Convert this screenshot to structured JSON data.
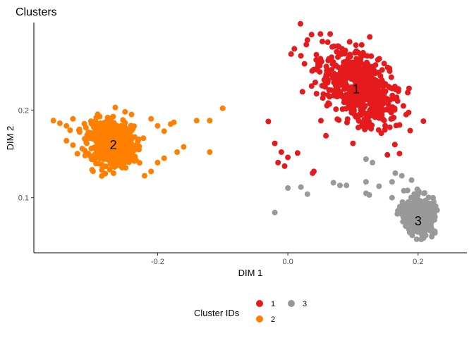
{
  "chart_data": {
    "type": "scatter",
    "title": "Clusters",
    "xlabel": "DIM 1",
    "ylabel": "DIM 2",
    "xlim": [
      -0.39,
      0.275
    ],
    "ylim": [
      0.037,
      0.3
    ],
    "xticks": [
      -0.2,
      0.0,
      0.2
    ],
    "xtick_labels": [
      "-0.2",
      "0.0",
      "0.2"
    ],
    "yticks": [
      0.1,
      0.2
    ],
    "ytick_labels": [
      "0.1",
      "0.2"
    ],
    "grid": false,
    "legend": {
      "title": "Cluster IDs",
      "placement": "bottom",
      "entries": [
        "1",
        "2",
        "3"
      ]
    },
    "series": [
      {
        "name": "1",
        "color": "#e41a1c",
        "label_position": [
          0.105,
          0.224
        ],
        "core_cloud": {
          "center": [
            0.11,
            0.225
          ],
          "major_axis_spread": 0.06,
          "minor_axis_spread": 0.02,
          "tilt_data_slope": -0.55,
          "count": 600
        },
        "points": [
          [
            0.01,
            0.27
          ],
          [
            0.03,
            0.28
          ],
          [
            0.05,
            0.287
          ],
          [
            0.065,
            0.287
          ],
          [
            0.005,
            0.264
          ],
          [
            0.02,
            0.262
          ],
          [
            -0.03,
            0.187
          ],
          [
            -0.02,
            0.162
          ],
          [
            -0.01,
            0.152
          ],
          [
            -0.015,
            0.14
          ],
          [
            -0.005,
            0.136
          ],
          [
            0.0,
            0.146
          ],
          [
            0.015,
            0.151
          ],
          [
            0.038,
            0.128
          ],
          [
            0.04,
            0.13
          ],
          [
            0.1,
            0.162
          ]
        ]
      },
      {
        "name": "2",
        "color": "#ff7f00",
        "label_position": [
          -0.268,
          0.16
        ],
        "core_cloud": {
          "center": [
            -0.27,
            0.162
          ],
          "major_axis_spread": 0.032,
          "minor_axis_spread": 0.014,
          "tilt_data_slope": -0.2,
          "count": 550
        },
        "points": [
          [
            -0.36,
            0.188
          ],
          [
            -0.35,
            0.185
          ],
          [
            -0.34,
            0.182
          ],
          [
            -0.33,
            0.19
          ],
          [
            -0.32,
            0.178
          ],
          [
            -0.31,
            0.18
          ],
          [
            -0.265,
            0.203
          ],
          [
            -0.25,
            0.198
          ],
          [
            -0.24,
            0.195
          ],
          [
            -0.21,
            0.19
          ],
          [
            -0.2,
            0.182
          ],
          [
            -0.19,
            0.176
          ],
          [
            -0.18,
            0.184
          ],
          [
            -0.175,
            0.186
          ],
          [
            -0.14,
            0.188
          ],
          [
            -0.12,
            0.188
          ],
          [
            -0.1,
            0.202
          ],
          [
            -0.22,
            0.125
          ],
          [
            -0.2,
            0.14
          ],
          [
            -0.21,
            0.13
          ],
          [
            -0.19,
            0.145
          ],
          [
            -0.17,
            0.152
          ],
          [
            -0.16,
            0.158
          ],
          [
            -0.12,
            0.152
          ],
          [
            -0.3,
            0.145
          ],
          [
            -0.31,
            0.15
          ],
          [
            -0.33,
            0.16
          ],
          [
            -0.34,
            0.165
          ]
        ]
      },
      {
        "name": "3",
        "color": "#999999",
        "label_position": [
          0.2,
          0.073
        ],
        "core_cloud": {
          "center": [
            0.2,
            0.08
          ],
          "major_axis_spread": 0.02,
          "minor_axis_spread": 0.011,
          "tilt_data_slope": -0.6,
          "count": 450
        },
        "points": [
          [
            -0.02,
            0.083
          ],
          [
            0.0,
            0.111
          ],
          [
            0.02,
            0.112
          ],
          [
            0.03,
            0.104
          ],
          [
            0.07,
            0.117
          ],
          [
            0.08,
            0.114
          ],
          [
            0.09,
            0.114
          ],
          [
            0.12,
            0.144
          ],
          [
            0.13,
            0.14
          ],
          [
            0.12,
            0.118
          ],
          [
            0.14,
            0.113
          ],
          [
            0.16,
            0.118
          ],
          [
            0.165,
            0.128
          ],
          [
            0.175,
            0.125
          ],
          [
            0.19,
            0.12
          ],
          [
            0.12,
            0.105
          ],
          [
            0.125,
            0.103
          ],
          [
            0.16,
            0.1
          ]
        ]
      }
    ]
  }
}
